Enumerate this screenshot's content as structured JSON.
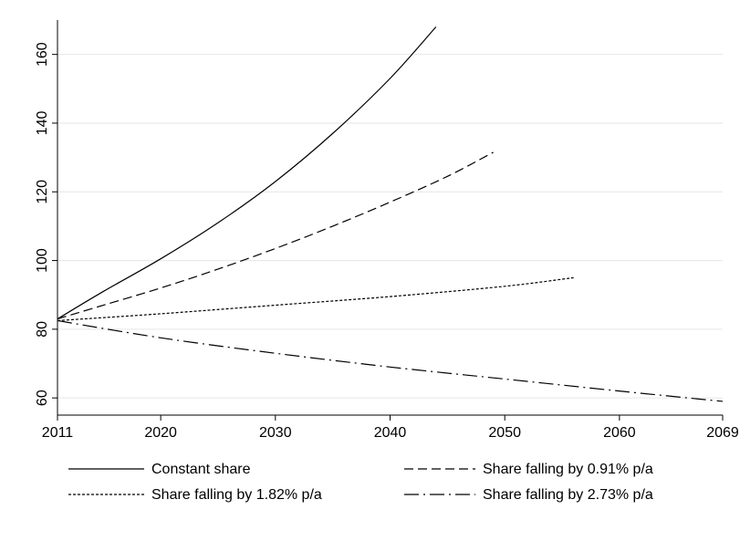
{
  "chart_data": {
    "type": "line",
    "title": "",
    "xlabel": "",
    "ylabel": "",
    "xlim": [
      2011,
      2069
    ],
    "ylim": [
      55,
      170
    ],
    "x_ticks": [
      2011,
      2020,
      2030,
      2040,
      2050,
      2060,
      2069
    ],
    "x_tick_labels": [
      "2011",
      "2020",
      "2030",
      "2040",
      "2050",
      "2060",
      "2069"
    ],
    "y_ticks": [
      60,
      80,
      100,
      120,
      140,
      160
    ],
    "y_tick_labels": [
      "60",
      "80",
      "100",
      "120",
      "140",
      "160"
    ],
    "grid": "horizontal",
    "legend_position": "bottom",
    "series": [
      {
        "name": "Constant share",
        "line_style": "solid",
        "color": "#000000",
        "x": [
          2011,
          2015,
          2020,
          2025,
          2030,
          2035,
          2040,
          2044
        ],
        "y": [
          83.0,
          91.0,
          100.5,
          111.0,
          123.0,
          137.0,
          153.0,
          168.0
        ]
      },
      {
        "name": "Share falling by 0.91% p/a",
        "line_style": "dashed",
        "color": "#000000",
        "x": [
          2011,
          2015,
          2020,
          2025,
          2030,
          2035,
          2040,
          2045,
          2049
        ],
        "y": [
          83.0,
          87.0,
          92.0,
          97.5,
          103.5,
          110.0,
          117.0,
          124.5,
          131.5
        ]
      },
      {
        "name": "Share falling by 1.82% p/a",
        "line_style": "dotted",
        "color": "#000000",
        "x": [
          2011,
          2020,
          2030,
          2040,
          2050,
          2056
        ],
        "y": [
          82.5,
          84.5,
          87.0,
          89.5,
          92.5,
          95.0
        ]
      },
      {
        "name": "Share falling by 2.73% p/a",
        "line_style": "dash-dot",
        "color": "#000000",
        "x": [
          2011,
          2020,
          2030,
          2040,
          2050,
          2060,
          2069
        ],
        "y": [
          82.5,
          77.5,
          73.0,
          69.0,
          65.5,
          62.0,
          59.0
        ]
      }
    ]
  }
}
